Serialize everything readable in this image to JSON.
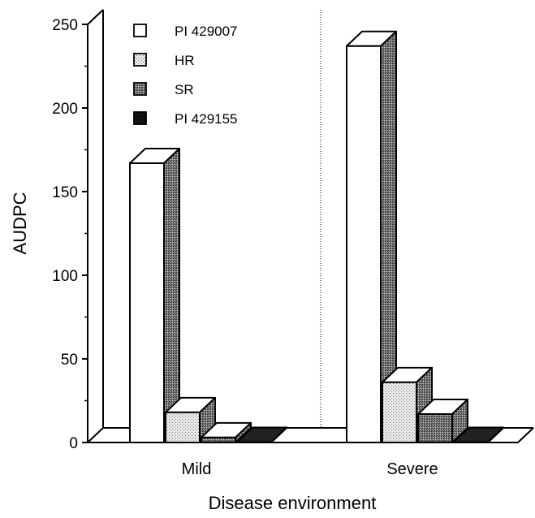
{
  "chart_data": {
    "type": "bar",
    "style": "3d-clustered-bars",
    "title": "",
    "xlabel": "Disease environment",
    "ylabel": "AUDPC",
    "ylim": [
      0,
      250
    ],
    "yticks": [
      "0",
      "50",
      "100",
      "150",
      "200",
      "250"
    ],
    "grid": false,
    "legend_position": "top-left",
    "categories": [
      "Mild",
      "Severe"
    ],
    "series": [
      {
        "name": "PI 429007",
        "values": [
          167,
          237
        ],
        "fill": "white-pattern"
      },
      {
        "name": "HR",
        "values": [
          18,
          36
        ],
        "fill": "light-dotted-pattern"
      },
      {
        "name": "SR",
        "values": [
          3,
          17
        ],
        "fill": "dark-stippled-pattern"
      },
      {
        "name": "PI 429155",
        "values": [
          0,
          0
        ],
        "fill": "black"
      }
    ],
    "colors": {
      "ink": "#000000",
      "background": "#ffffff"
    }
  }
}
